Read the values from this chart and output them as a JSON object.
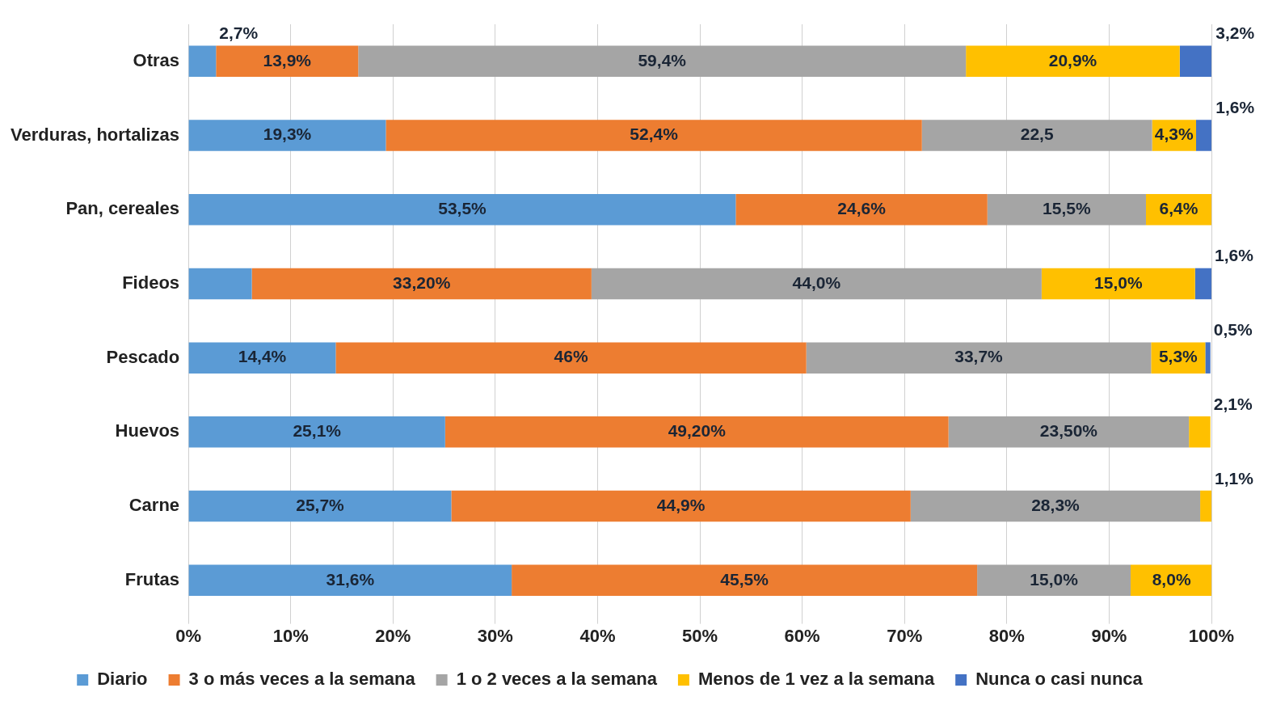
{
  "chart_data": {
    "type": "bar",
    "orientation": "horizontal",
    "stacked": true,
    "grid": "x",
    "legend": "bottom",
    "categories": [
      "Otras",
      "Verduras, hortalizas",
      "Pan, cereales",
      "Fideos",
      "Pescado",
      "Huevos",
      "Carne",
      "Frutas"
    ],
    "xlim": [
      0,
      100
    ],
    "xticks": [
      {
        "value": 0,
        "label": "0%"
      },
      {
        "value": 10,
        "label": "10%"
      },
      {
        "value": 20,
        "label": "20%"
      },
      {
        "value": 30,
        "label": "30%"
      },
      {
        "value": 40,
        "label": "40%"
      },
      {
        "value": 50,
        "label": "50%"
      },
      {
        "value": 60,
        "label": "60%"
      },
      {
        "value": 70,
        "label": "70%"
      },
      {
        "value": 80,
        "label": "80%"
      },
      {
        "value": 90,
        "label": "90%"
      },
      {
        "value": 100,
        "label": "100%"
      }
    ],
    "series": [
      {
        "name": "Diario",
        "color": "#5b9bd5",
        "values": [
          2.7,
          19.3,
          53.5,
          6.2,
          14.4,
          25.1,
          25.7,
          31.6
        ],
        "value_labels": [
          "2,7%",
          "19,3%",
          "53,5%",
          null,
          "14,4%",
          "25,1%",
          "25,7%",
          "31,6%"
        ]
      },
      {
        "name": "3 o más veces a la semana",
        "color": "#ed7d31",
        "values": [
          13.9,
          52.4,
          24.6,
          33.2,
          46,
          49.2,
          44.9,
          45.5
        ],
        "value_labels": [
          "13,9%",
          "52,4%",
          "24,6%",
          "33,20%",
          "46%",
          "49,20%",
          "44,9%",
          "45,5%"
        ]
      },
      {
        "name": "1 o 2 veces a la semana",
        "color": "#a5a5a5",
        "values": [
          59.4,
          22.5,
          15.5,
          44.0,
          33.7,
          23.5,
          28.3,
          15.0
        ],
        "value_labels": [
          "59,4%",
          "22,5",
          "15,5%",
          "44,0%",
          "33,7%",
          "23,50%",
          "28,3%",
          "15,0%"
        ]
      },
      {
        "name": "Menos de 1 vez a la semana",
        "color": "#ffc000",
        "values": [
          20.9,
          4.3,
          6.4,
          15.0,
          5.3,
          2.1,
          1.1,
          8.0
        ],
        "value_labels": [
          "20,9%",
          "4,3%",
          "6,4%",
          "15,0%",
          "5,3%",
          "2,1%",
          "1,1%",
          "8,0%"
        ]
      },
      {
        "name": "Nunca o casi nunca",
        "color": "#4472c4",
        "values": [
          3.2,
          1.6,
          null,
          1.6,
          0.5,
          null,
          null,
          null
        ],
        "value_labels": [
          "3,2%",
          "1,6%",
          null,
          "1,6%",
          "0,5%",
          null,
          null,
          null
        ]
      }
    ]
  }
}
